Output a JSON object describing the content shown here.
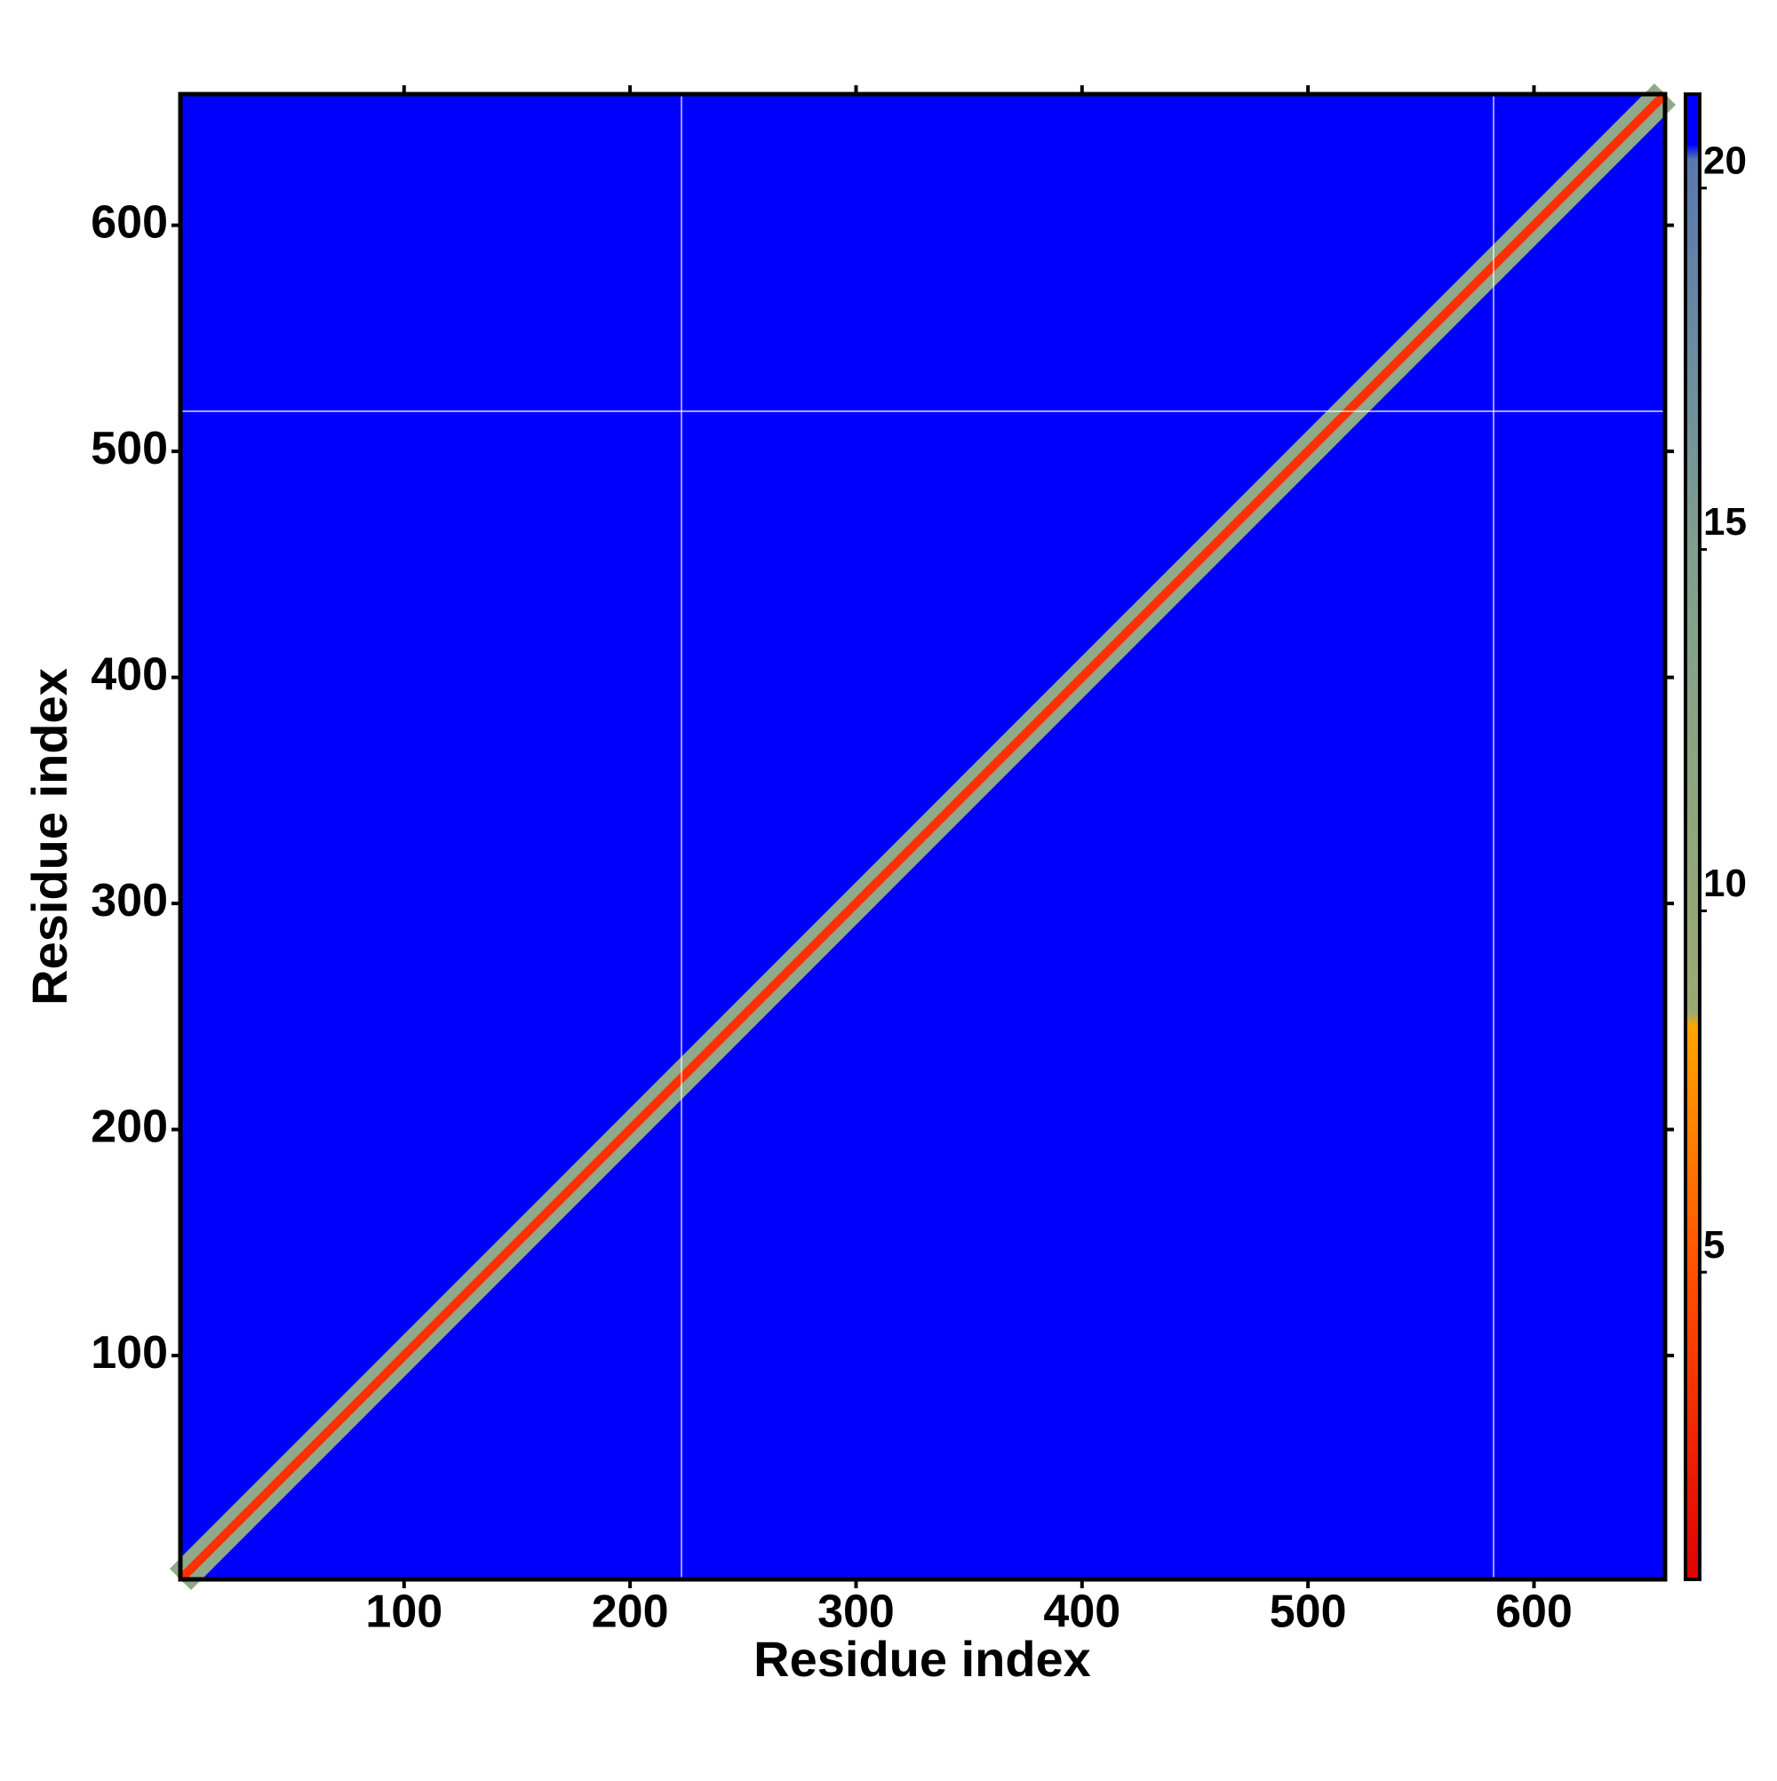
{
  "chart_data": {
    "type": "heatmap",
    "x_label": "Residue index",
    "y_label": "Residue index",
    "xlim": [
      1,
      658
    ],
    "ylim": [
      1,
      658
    ],
    "xticks": [
      100,
      200,
      300,
      400,
      500,
      600
    ],
    "yticks": [
      100,
      200,
      300,
      400,
      500,
      600
    ],
    "background_color": "#0000ff",
    "colorbar": {
      "clim": [
        0.75,
        21.3
      ],
      "ticks": [
        5,
        10,
        15,
        20
      ],
      "colorscale": [
        {
          "value": 0.75,
          "color": "#e00000"
        },
        {
          "value": 5,
          "color": "#ff5000"
        },
        {
          "value": 8.4,
          "color": "#ffa500"
        },
        {
          "value": 8.6,
          "color": "#9aaa70"
        },
        {
          "value": 15,
          "color": "#7f9f8f"
        },
        {
          "value": 20.4,
          "color": "#5878b0"
        },
        {
          "value": 20.6,
          "color": "#0000ff"
        },
        {
          "value": 21.3,
          "color": "#0000ff"
        }
      ]
    }
  }
}
